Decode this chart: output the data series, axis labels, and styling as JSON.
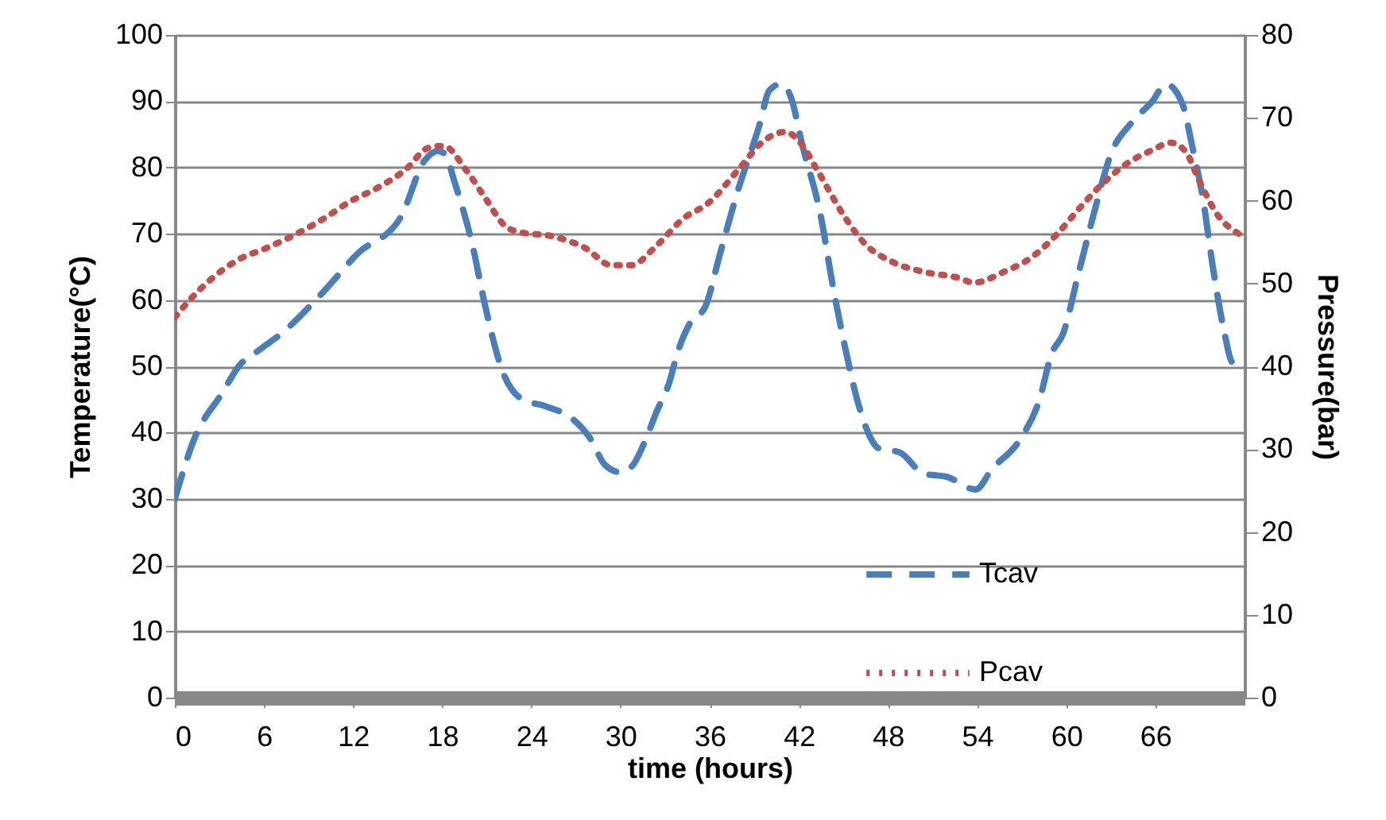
{
  "chart_data": {
    "type": "line",
    "xlabel": "time (hours)",
    "ylabel": "Temperature(°C)",
    "y2label": "Pressure(bar)",
    "xlim": [
      0,
      72
    ],
    "xticks": [
      0,
      6,
      12,
      18,
      24,
      30,
      36,
      42,
      48,
      54,
      60,
      66
    ],
    "ylim": [
      0,
      100
    ],
    "yticks": [
      0,
      10,
      20,
      30,
      40,
      50,
      60,
      70,
      80,
      90,
      100
    ],
    "y2lim": [
      0,
      80
    ],
    "y2ticks": [
      0,
      10,
      20,
      30,
      40,
      50,
      60,
      70,
      80
    ],
    "grid": "y",
    "legend": "bottom right",
    "series": [
      {
        "name": "Tcav",
        "color": "#4a7ebb",
        "line_style": "dashed",
        "x": [
          0,
          1.3,
          3.2,
          4.3,
          5.7,
          7.2,
          9.9,
          12.3,
          15.2,
          16.8,
          17.7,
          18.2,
          18.8,
          20,
          20.9,
          22,
          23.4,
          24.9,
          26.8,
          27.9,
          29,
          30,
          30.8,
          31.7,
          32.4,
          33.3,
          33.8,
          34.7,
          35.7,
          36.7,
          37.8,
          39.4,
          40,
          40.8,
          41.5,
          42.2,
          43.5,
          44.3,
          45.1,
          46.1,
          47.4,
          48.8,
          50.4,
          52,
          53.9,
          55,
          56.9,
          58.2,
          59,
          59.8,
          60.8,
          61.9,
          63,
          64.4,
          65.8,
          66.7,
          67.8,
          68.5,
          69.2,
          69.9,
          70.6,
          71.2,
          72
        ],
        "values": [
          30,
          39,
          46,
          50,
          52.5,
          55,
          61,
          67,
          72.5,
          81,
          82.5,
          82,
          78,
          68.6,
          59,
          49.6,
          45,
          44,
          42,
          39.3,
          35,
          34,
          35,
          39,
          43,
          47.7,
          51.8,
          56.6,
          59,
          67,
          75.8,
          86.8,
          91.6,
          92.6,
          90.4,
          83.7,
          72.4,
          62,
          53,
          43.6,
          37.6,
          37,
          33.8,
          33.3,
          31.4,
          34.5,
          39,
          45,
          51.8,
          55,
          63.8,
          73.4,
          82,
          86.8,
          90,
          92.6,
          89.7,
          83,
          75.3,
          64.5,
          55.6,
          50.6,
          50.6
        ]
      },
      {
        "name": "Pcav",
        "color": "#c0504d",
        "line_style": "dotted",
        "axis": "y2",
        "x": [
          0,
          0.7,
          2.3,
          4.2,
          6.2,
          8.1,
          10,
          11.8,
          13.7,
          15.5,
          17.1,
          18.1,
          19.6,
          20.9,
          22.2,
          23.2,
          25.4,
          27.6,
          29.4,
          30.7,
          32.5,
          34.2,
          35.9,
          38.1,
          39.5,
          41.1,
          42.1,
          43.3,
          45.1,
          46.5,
          48.3,
          50.4,
          52.7,
          53.8,
          55.8,
          57.7,
          59.4,
          60.8,
          62.3,
          64.1,
          65.9,
          67,
          68,
          69,
          70.1,
          71.7
        ],
        "values": [
          45.9,
          47.4,
          50.3,
          52.8,
          54.3,
          55.9,
          57.8,
          59.9,
          61.6,
          63.7,
          66.4,
          66.6,
          63.7,
          60.3,
          57,
          56.2,
          55.7,
          54.3,
          52.2,
          52.2,
          54.7,
          57.8,
          59.7,
          64.1,
          67,
          68.3,
          67,
          63.5,
          58,
          54.7,
          52.6,
          51.4,
          50.7,
          50.1,
          51.4,
          53.2,
          56,
          58.9,
          61.8,
          64.5,
          66.2,
          67,
          66,
          62.2,
          58.5,
          55.9
        ]
      }
    ]
  }
}
